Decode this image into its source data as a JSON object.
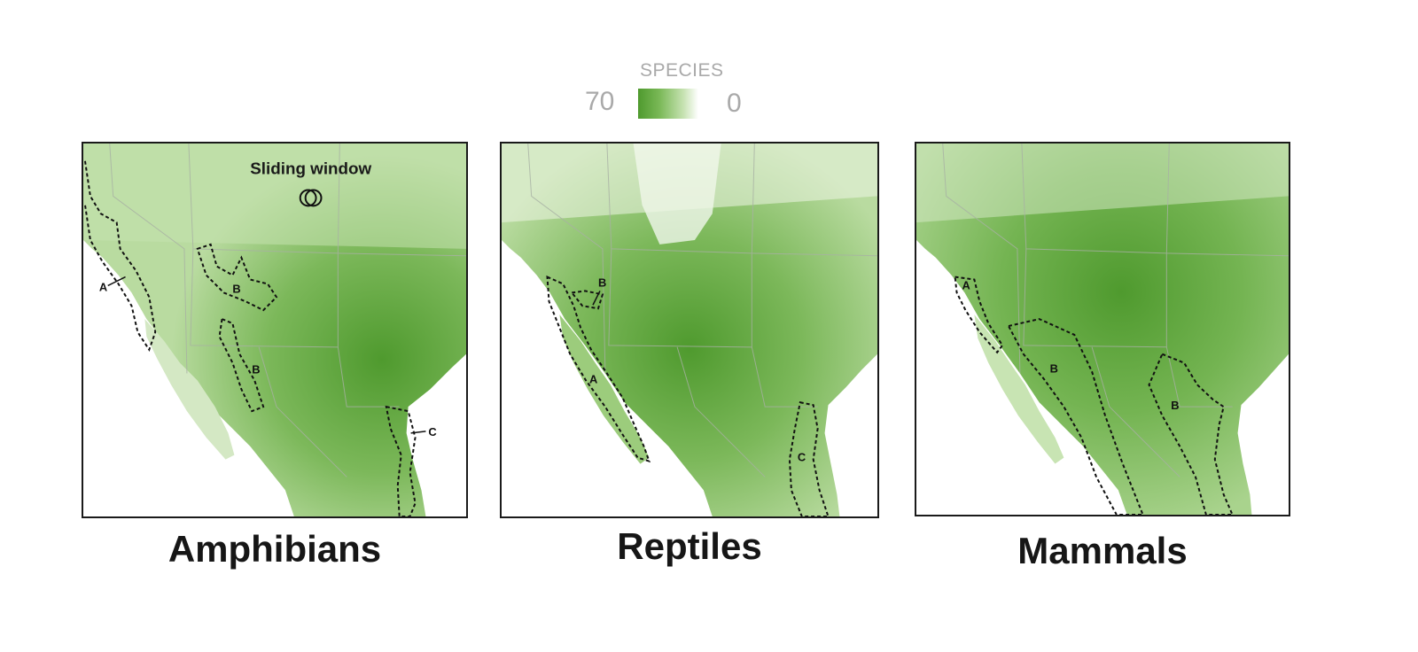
{
  "legend": {
    "title": "SPECIES",
    "max_label": "70",
    "min_label": "0",
    "color_high": "#4f9a2e",
    "color_low": "#ffffff"
  },
  "panels": [
    {
      "caption": "Amphibians",
      "annotation": "Sliding window",
      "zones": [
        "A",
        "B",
        "B",
        "C"
      ]
    },
    {
      "caption": "Reptiles",
      "zones": [
        "A",
        "B",
        "C"
      ]
    },
    {
      "caption": "Mammals",
      "zones": [
        "A",
        "B",
        "B"
      ]
    }
  ],
  "colors": {
    "land_light": "#d8ebc9",
    "land_mid": "#8cc26b",
    "land_dark": "#4f9a2e",
    "ocean": "#ffffff",
    "border_lines": "#a8b0a4"
  }
}
